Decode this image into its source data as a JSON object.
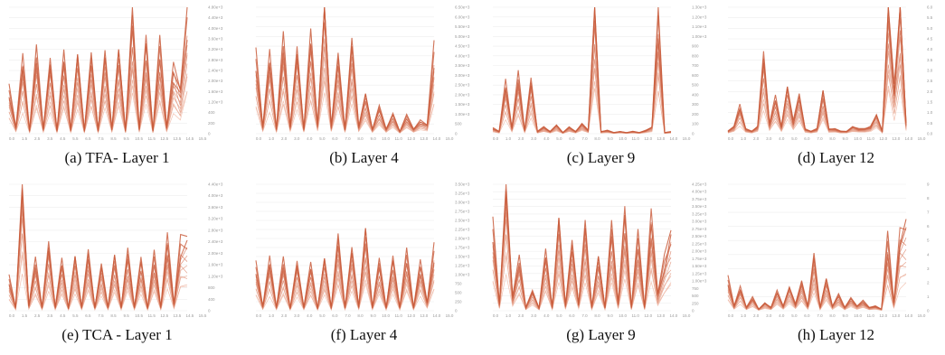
{
  "colors": {
    "line_dark": "#c85a3a",
    "line_light": "#f0b9a6",
    "grid": "#eeeeee",
    "tick_text": "#9a9a9a"
  },
  "chart_data": [
    {
      "type": "line",
      "caption": "(a) TFA- Layer 1",
      "x_ticks": [
        "0.0",
        "1.5",
        "2.5",
        "3.5",
        "4.5",
        "5.5",
        "6.5",
        "7.5",
        "8.5",
        "9.5",
        "10.5",
        "11.5",
        "12.5",
        "13.5",
        "14.5",
        "15.5"
      ],
      "y_ticks": [
        "0",
        "200",
        "400",
        "1.20e+3",
        "1.60e+3",
        "2.00e+3",
        "2.40e+3",
        "2.80e+3",
        "3.20e+3",
        "3.60e+3",
        "4.00e+3",
        "4.40e+3",
        "4.80e+3"
      ],
      "ylim": [
        0,
        4800
      ],
      "series_count": 12,
      "profile": [
        1500,
        200,
        2600,
        100,
        2700,
        150,
        2500,
        100,
        2600,
        120,
        2700,
        100,
        2600,
        100,
        2700,
        150,
        2800,
        100,
        4100,
        150,
        3200,
        100,
        3000,
        200,
        2300,
        1500,
        4000
      ]
    },
    {
      "type": "line",
      "caption": "(b) Layer 4",
      "x_ticks": [
        "0.0",
        "1.0",
        "2.0",
        "3.0",
        "4.0",
        "5.0",
        "6.0",
        "7.0",
        "8.0",
        "9.0",
        "10.0",
        "11.0",
        "12.0",
        "13.0",
        "14.0",
        "15.0"
      ],
      "y_ticks": [
        "0",
        "500",
        "1.00e+3",
        "1.50e+3",
        "2.00e+3",
        "2.50e+3",
        "3.00e+3",
        "3.50e+3",
        "4.00e+3",
        "4.50e+3",
        "5.00e+3",
        "5.50e+3",
        "6.00e+3",
        "6.50e+3"
      ],
      "ylim": [
        0,
        6500
      ],
      "series_count": 12,
      "profile": [
        3500,
        300,
        3700,
        200,
        4200,
        300,
        3900,
        200,
        4400,
        400,
        6200,
        300,
        3500,
        200,
        4200,
        300,
        1800,
        200,
        1200,
        200,
        900,
        100,
        800,
        200,
        600,
        400,
        3800
      ]
    },
    {
      "type": "line",
      "caption": "(c) Layer 9",
      "x_ticks": [
        "0.0",
        "1.0",
        "2.0",
        "3.0",
        "4.0",
        "5.0",
        "6.0",
        "7.0",
        "8.0",
        "9.0",
        "10.0",
        "11.0",
        "12.0",
        "13.0",
        "14.0",
        "15.0"
      ],
      "y_ticks": [
        "0",
        "100",
        "200",
        "300",
        "400",
        "500",
        "600",
        "700",
        "800",
        "900",
        "1.00e+3",
        "1.10e+3",
        "1.20e+3",
        "1.30e+3"
      ],
      "ylim": [
        0,
        1300
      ],
      "series_count": 12,
      "profile": [
        50,
        20,
        480,
        50,
        520,
        30,
        500,
        20,
        60,
        20,
        80,
        10,
        60,
        20,
        90,
        30,
        1250,
        20,
        30,
        10,
        20,
        10,
        20,
        10,
        30,
        60,
        1100,
        10,
        20
      ]
    },
    {
      "type": "line",
      "caption": "(d) Layer 12",
      "x_ticks": [
        "0.0",
        "1.0",
        "2.0",
        "3.0",
        "4.0",
        "5.0",
        "6.0",
        "7.0",
        "8.0",
        "9.0",
        "10.0",
        "11.0",
        "12.0",
        "13.0",
        "14.0",
        "15.0"
      ],
      "y_ticks": [
        "0.0",
        "0.5",
        "1.0",
        "1.5",
        "2.0",
        "2.5",
        "3.0",
        "3.5",
        "4.0",
        "4.5",
        "5.0",
        "5.5",
        "6.0"
      ],
      "ylim": [
        0,
        6
      ],
      "series_count": 12,
      "profile": [
        0.1,
        0.3,
        1.2,
        0.2,
        0.1,
        0.3,
        3.4,
        0.4,
        1.5,
        0.3,
        2.0,
        0.5,
        1.6,
        0.2,
        0.1,
        0.2,
        1.8,
        0.2,
        0.2,
        0.1,
        0.1,
        0.3,
        0.2,
        0.2,
        0.3,
        0.8,
        0.1,
        5.5,
        2.0,
        5.8,
        0.4
      ]
    },
    {
      "type": "line",
      "caption": "(e) TCA - Layer 1",
      "x_ticks": [
        "0.0",
        "1.5",
        "2.5",
        "3.5",
        "4.5",
        "5.5",
        "6.5",
        "7.5",
        "8.5",
        "9.5",
        "10.5",
        "11.5",
        "12.5",
        "13.5",
        "14.5",
        "15.5"
      ],
      "y_ticks": [
        "0",
        "400",
        "800",
        "1.20e+3",
        "1.60e+3",
        "2.00e+3",
        "2.40e+3",
        "2.80e+3",
        "3.20e+3",
        "3.60e+3",
        "4.00e+3",
        "4.40e+3"
      ],
      "ylim": [
        0,
        4400
      ],
      "series_count": 12,
      "profile": [
        1000,
        100,
        4300,
        150,
        1500,
        100,
        2100,
        100,
        1500,
        80,
        1700,
        100,
        1800,
        100,
        1400,
        100,
        1700,
        100,
        1800,
        100,
        1600,
        80,
        1700,
        100,
        2300,
        200,
        2100,
        2200
      ]
    },
    {
      "type": "line",
      "caption": "(f) Layer 4",
      "x_ticks": [
        "0.0",
        "1.0",
        "2.0",
        "3.0",
        "4.0",
        "5.0",
        "6.0",
        "7.0",
        "8.0",
        "9.0",
        "10.0",
        "11.0",
        "12.0",
        "13.0",
        "14.0",
        "15.0"
      ],
      "y_ticks": [
        "0",
        "250",
        "500",
        "750",
        "1.00e+3",
        "1.25e+3",
        "1.50e+3",
        "1.75e+3",
        "2.00e+3",
        "2.25e+3",
        "2.50e+3",
        "2.75e+3",
        "3.00e+3",
        "3.25e+3",
        "3.50e+3"
      ],
      "ylim": [
        0,
        3500
      ],
      "series_count": 12,
      "profile": [
        1100,
        100,
        1300,
        80,
        1200,
        60,
        1200,
        80,
        1100,
        60,
        1300,
        70,
        1800,
        80,
        1500,
        90,
        2000,
        80,
        1200,
        70,
        1300,
        80,
        1400,
        70,
        1200,
        200,
        1500
      ]
    },
    {
      "type": "line",
      "caption": "(g) Layer 9",
      "x_ticks": [
        "0.0",
        "1.0",
        "2.0",
        "3.0",
        "4.0",
        "5.0",
        "6.0",
        "7.0",
        "8.0",
        "9.0",
        "10.0",
        "11.0",
        "12.0",
        "13.0",
        "14.0",
        "15.0"
      ],
      "y_ticks": [
        "0",
        "250",
        "500",
        "750",
        "1.00e+3",
        "1.25e+3",
        "1.50e+3",
        "1.75e+3",
        "2.00e+3",
        "2.25e+3",
        "2.50e+3",
        "2.75e+3",
        "3.00e+3",
        "3.25e+3",
        "3.50e+3",
        "3.75e+3",
        "4.00e+3",
        "4.25e+3"
      ],
      "ylim": [
        0,
        4250
      ],
      "series_count": 12,
      "profile": [
        2500,
        200,
        4100,
        400,
        1500,
        100,
        600,
        80,
        1700,
        100,
        2800,
        150,
        2000,
        200,
        2600,
        100,
        1600,
        100,
        2500,
        200,
        3000,
        100,
        2200,
        100,
        2900,
        500,
        1500,
        2300
      ]
    },
    {
      "type": "line",
      "caption": "(h) Layer 12",
      "x_ticks": [
        "0.0",
        "1.0",
        "2.0",
        "3.0",
        "4.0",
        "5.0",
        "6.0",
        "7.0",
        "8.0",
        "9.0",
        "10.0",
        "11.0",
        "12.0",
        "13.0",
        "14.0",
        "15.0"
      ],
      "y_ticks": [
        "0",
        "1",
        "2",
        "3",
        "4",
        "5",
        "6",
        "7",
        "8",
        "9"
      ],
      "ylim": [
        0,
        9
      ],
      "series_count": 12,
      "profile": [
        2.0,
        0.3,
        1.5,
        0.2,
        0.8,
        0.1,
        0.5,
        0.2,
        1.2,
        0.3,
        1.5,
        0.4,
        1.8,
        0.3,
        3.5,
        0.2,
        2.0,
        0.3,
        1.0,
        0.2,
        0.8,
        0.3,
        0.6,
        0.2,
        0.3,
        0.1,
        4.5,
        0.5,
        5.0,
        5.5
      ]
    }
  ]
}
